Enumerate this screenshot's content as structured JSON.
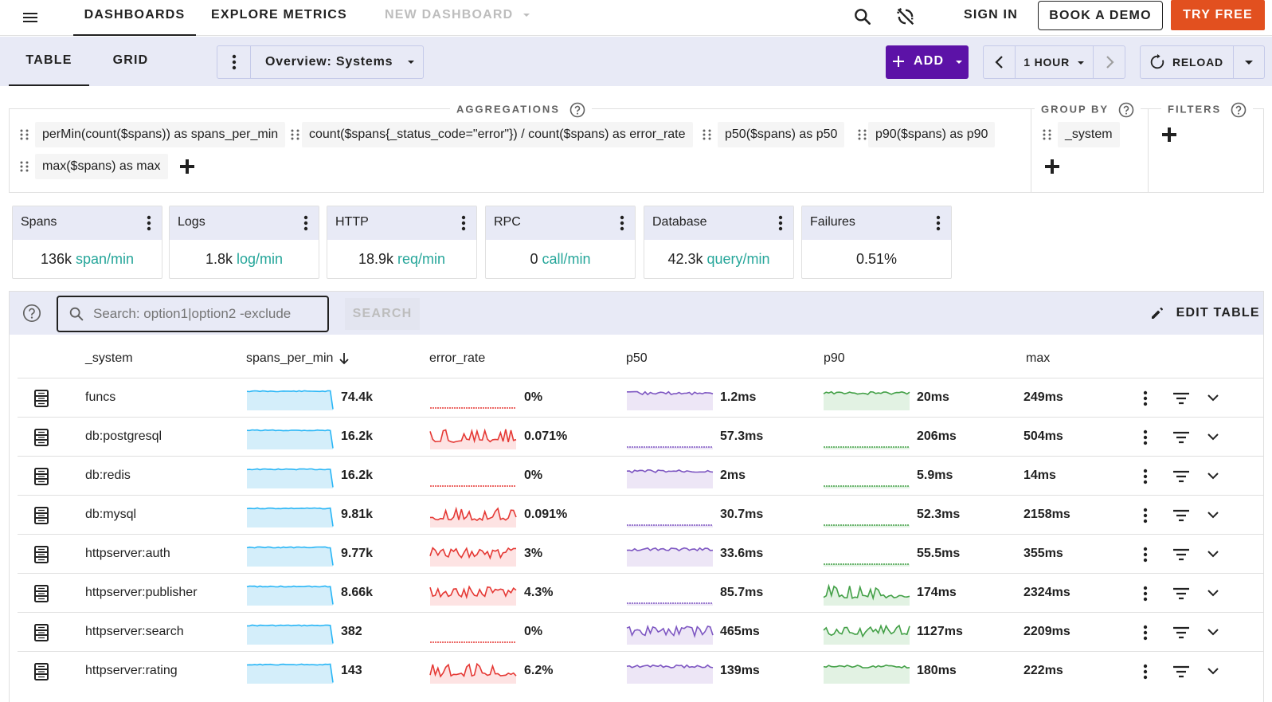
{
  "topnav": {
    "dashboards": "DASHBOARDS",
    "explore_metrics": "EXPLORE METRICS",
    "new_dashboard": "NEW DASHBOARD",
    "sign_in": "SIGN IN",
    "book_demo": "BOOK A DEMO",
    "try_free": "TRY FREE"
  },
  "toolbar": {
    "tab_table": "TABLE",
    "tab_grid": "GRID",
    "dashboard_name": "Overview: Systems",
    "add_label": "ADD",
    "period": "1 HOUR",
    "reload": "RELOAD"
  },
  "query": {
    "aggregations_label": "AGGREGATIONS",
    "group_by_label": "GROUP BY",
    "filters_label": "FILTERS",
    "aggregations": [
      "perMin(count($spans)) as spans_per_min",
      "count($spans{_status_code=\"error\"}) / count($spans) as error_rate",
      "p50($spans) as p50",
      "p90($spans) as p90",
      "max($spans) as max"
    ],
    "group_by": [
      "_system"
    ]
  },
  "cards": [
    {
      "title": "Spans",
      "value": "136k",
      "unit": "span/min"
    },
    {
      "title": "Logs",
      "value": "1.8k",
      "unit": "log/min"
    },
    {
      "title": "HTTP",
      "value": "18.9k",
      "unit": "req/min"
    },
    {
      "title": "RPC",
      "value": "0",
      "unit": "call/min"
    },
    {
      "title": "Database",
      "value": "42.3k",
      "unit": "query/min"
    },
    {
      "title": "Failures",
      "value": "0.51%",
      "unit": ""
    }
  ],
  "table": {
    "search_placeholder": "Search: option1|option2 -exclude",
    "search_button": "SEARCH",
    "edit_table": "EDIT TABLE",
    "columns": [
      "_system",
      "spans_per_min",
      "error_rate",
      "p50",
      "p90",
      "max"
    ],
    "sort_column": "spans_per_min",
    "sort_direction": "desc",
    "rows": [
      {
        "system": "funcs",
        "spans_per_min": "74.4k",
        "error_rate": "0%",
        "p50": "1.2ms",
        "p90": "20ms",
        "max": "249ms",
        "err_shape": "flat",
        "p50_shape": "smooth",
        "p90_shape": "smooth"
      },
      {
        "system": "db:postgresql",
        "spans_per_min": "16.2k",
        "error_rate": "0.071%",
        "p50": "57.3ms",
        "p90": "206ms",
        "max": "504ms",
        "err_shape": "spiky",
        "p50_shape": "flat",
        "p90_shape": "flat"
      },
      {
        "system": "db:redis",
        "spans_per_min": "16.2k",
        "error_rate": "0%",
        "p50": "2ms",
        "p90": "5.9ms",
        "max": "14ms",
        "err_shape": "flat",
        "p50_shape": "smooth",
        "p90_shape": "flat"
      },
      {
        "system": "db:mysql",
        "spans_per_min": "9.81k",
        "error_rate": "0.091%",
        "p50": "30.7ms",
        "p90": "52.3ms",
        "max": "2158ms",
        "err_shape": "spiky",
        "p50_shape": "flat",
        "p90_shape": "flat"
      },
      {
        "system": "httpserver:auth",
        "spans_per_min": "9.77k",
        "error_rate": "3%",
        "p50": "33.6ms",
        "p90": "55.5ms",
        "max": "355ms",
        "err_shape": "noisy",
        "p50_shape": "smooth",
        "p90_shape": "flat"
      },
      {
        "system": "httpserver:publisher",
        "spans_per_min": "8.66k",
        "error_rate": "4.3%",
        "p50": "85.7ms",
        "p90": "174ms",
        "max": "2324ms",
        "err_shape": "noisy",
        "p50_shape": "flat",
        "p90_shape": "spiky"
      },
      {
        "system": "httpserver:search",
        "spans_per_min": "382",
        "error_rate": "0%",
        "p50": "465ms",
        "p90": "1127ms",
        "max": "2209ms",
        "err_shape": "flat",
        "p50_shape": "noisy",
        "p90_shape": "noisy"
      },
      {
        "system": "httpserver:rating",
        "spans_per_min": "143",
        "error_rate": "6.2%",
        "p50": "139ms",
        "p90": "180ms",
        "max": "222ms",
        "err_shape": "spiky",
        "p50_shape": "smooth",
        "p90_shape": "smooth"
      }
    ]
  },
  "colors": {
    "accent": "#5c12a7",
    "orange": "#e2501f",
    "spans_line": "#29b6f6",
    "spans_fill": "#d4eefa",
    "error_line": "#e53935",
    "error_fill": "#fde3e3",
    "p50_line": "#7e57c2",
    "p50_fill": "#ede6f6",
    "p90_line": "#43a047",
    "p90_fill": "#e2f2e3",
    "unit_teal": "#26a69a"
  }
}
